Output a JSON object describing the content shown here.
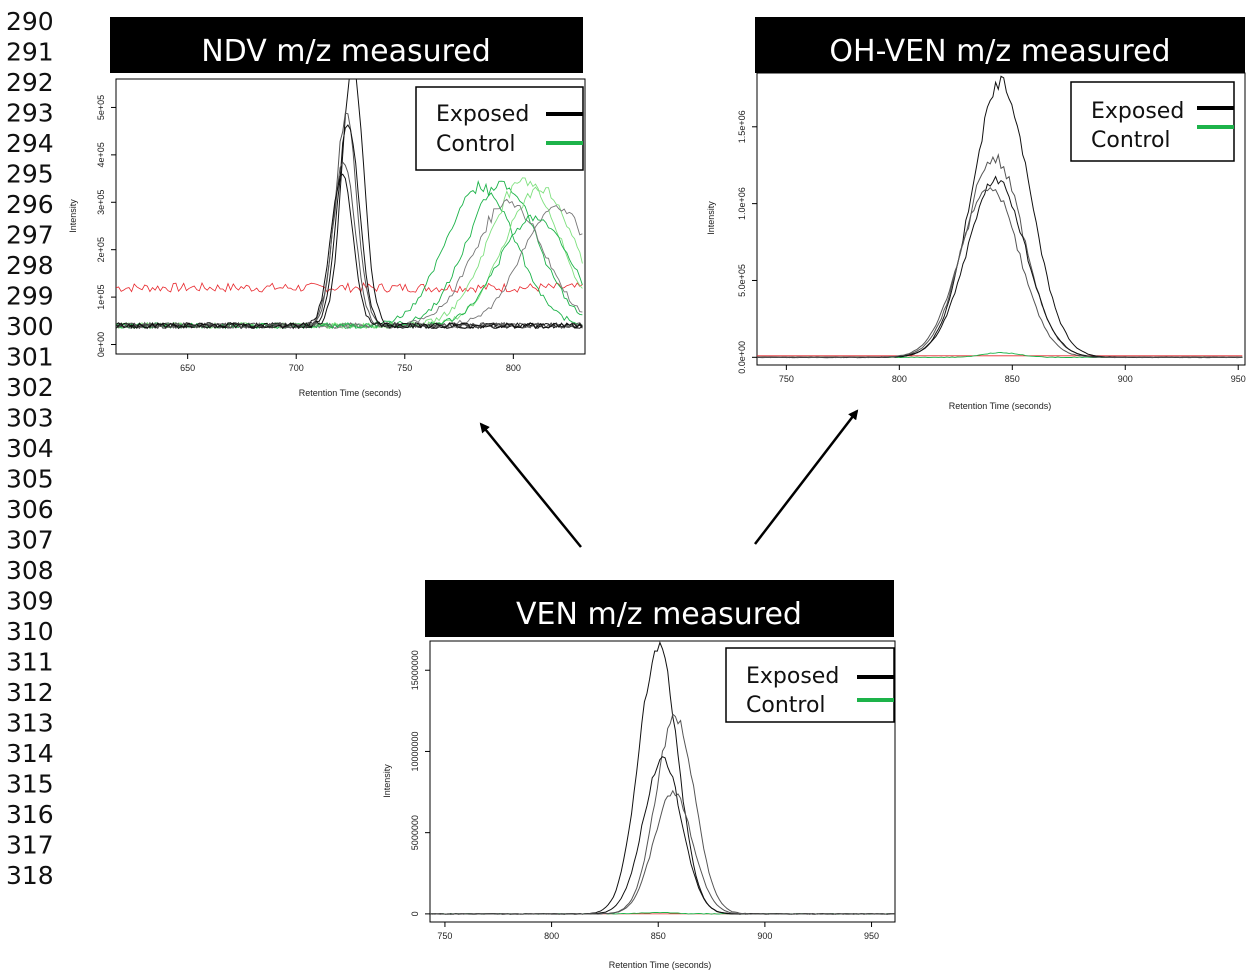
{
  "line_numbers": [
    "290",
    "291",
    "292",
    "293",
    "294",
    "295",
    "296",
    "297",
    "298",
    "299",
    "300",
    "301",
    "302",
    "303",
    "304",
    "305",
    "306",
    "307",
    "308",
    "309",
    "310",
    "311",
    "312",
    "313",
    "314",
    "315",
    "316",
    "317",
    "318"
  ],
  "colors": {
    "exposed": "#000000",
    "control": "#1db34a",
    "title_bg": "#000000",
    "baseline_red": "#e8282d",
    "control_light": "#7fe07f"
  },
  "legend": {
    "exposed": "Exposed",
    "control": "Control"
  },
  "chart_data": [
    {
      "id": "ndv",
      "type": "line",
      "title": "NDV m/z measured",
      "xlabel": "Retention Time (seconds)",
      "ylabel": "Intensity",
      "xlim": [
        617,
        833
      ],
      "ylim": [
        -20000,
        560000
      ],
      "xticks": [
        650,
        700,
        750,
        800
      ],
      "yticks": [
        0,
        100000,
        200000,
        300000,
        400000,
        500000
      ],
      "ytick_labels": [
        "0e+00",
        "1e+05",
        "2e+05",
        "3e+05",
        "4e+05",
        "5e+05"
      ],
      "exposed_peaks": [
        {
          "center": 726,
          "height": 545000
        },
        {
          "center": 723,
          "height": 440000
        },
        {
          "center": 724,
          "height": 425000
        },
        {
          "center": 722,
          "height": 345000
        },
        {
          "center": 721,
          "height": 320000
        }
      ],
      "control_peaks": [
        {
          "center": 785,
          "height": 295000,
          "color": "control"
        },
        {
          "center": 795,
          "height": 300000,
          "color": "control"
        },
        {
          "center": 805,
          "height": 310000,
          "color": "control_light"
        },
        {
          "center": 812,
          "height": 290000,
          "color": "control_light"
        },
        {
          "center": 798,
          "height": 260000,
          "color": "gray"
        },
        {
          "center": 820,
          "height": 250000,
          "color": "gray"
        },
        {
          "center": 810,
          "height": 230000,
          "color": "control"
        }
      ],
      "baseline": 40000,
      "red_trace_level": 120000
    },
    {
      "id": "ohven",
      "type": "line",
      "title": "OH-VEN m/z measured",
      "xlabel": "Retention Time (seconds)",
      "ylabel": "Intensity",
      "xlim": [
        737,
        953
      ],
      "ylim": [
        -50000,
        1850000
      ],
      "xticks": [
        750,
        800,
        850,
        900,
        950
      ],
      "yticks": [
        0,
        500000,
        1000000,
        1500000
      ],
      "ytick_labels": [
        "0.0e+00",
        "5.0e+05",
        "1.0e+06",
        "1.5e+06"
      ],
      "exposed_peaks": [
        {
          "center": 845,
          "height": 1780000
        },
        {
          "center": 842,
          "height": 1300000
        },
        {
          "center": 843,
          "height": 1150000
        },
        {
          "center": 840,
          "height": 1120000
        }
      ],
      "control_peaks": [
        {
          "center": 845,
          "height": 30000,
          "color": "control"
        }
      ],
      "baseline": 0,
      "red_trace_level": 10000
    },
    {
      "id": "ven",
      "type": "line",
      "title": "VEN m/z measured",
      "xlabel": "Retention Time (seconds)",
      "ylabel": "Intensity",
      "xlim": [
        743,
        961
      ],
      "ylim": [
        -500000,
        16800000
      ],
      "xticks": [
        750,
        800,
        850,
        900,
        950
      ],
      "yticks": [
        0,
        5000000,
        10000000,
        15000000
      ],
      "ytick_labels": [
        "0",
        "5000000",
        "10000000",
        "15000000"
      ],
      "exposed_peaks": [
        {
          "center": 850,
          "height": 16500000
        },
        {
          "center": 858,
          "height": 12200000
        },
        {
          "center": 852,
          "height": 9500000
        },
        {
          "center": 857,
          "height": 7500000
        }
      ],
      "control_peaks": [
        {
          "center": 850,
          "height": 80000,
          "color": "control"
        }
      ],
      "baseline": 0,
      "red_trace_level": 0
    }
  ]
}
